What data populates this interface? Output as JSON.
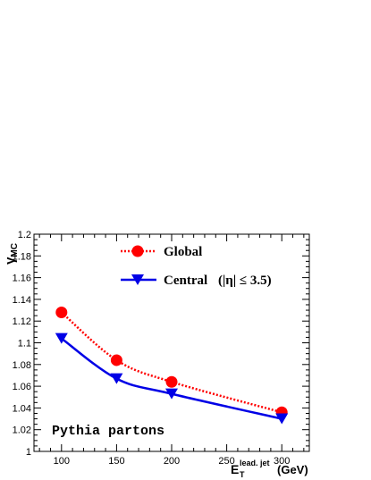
{
  "chart_data": {
    "type": "line",
    "x": [
      100,
      150,
      200,
      300
    ],
    "series": [
      {
        "name": "Global",
        "values": [
          1.128,
          1.084,
          1.064,
          1.036
        ],
        "color": "#ff0000",
        "marker": "circle",
        "line_style": "dotted"
      },
      {
        "name": "Central",
        "legend_extra": "(|η| ≤ 3.5)",
        "values": [
          1.104,
          1.067,
          1.053,
          1.03
        ],
        "color": "#0000e6",
        "marker": "triangle-down",
        "line_style": "solid"
      }
    ],
    "xlim": [
      75,
      325
    ],
    "ylim": [
      1.0,
      1.2
    ],
    "xticks": [
      100,
      150,
      200,
      250,
      300
    ],
    "yticks": [
      "1",
      "1.02",
      "1.04",
      "1.06",
      "1.08",
      "1.1",
      "1.12",
      "1.14",
      "1.16",
      "1.18",
      "1.2"
    ],
    "ylabel": {
      "main": "γ",
      "sub": "MC"
    },
    "xlabel": {
      "main": "E",
      "sub": "T",
      "sup": "lead. jet",
      "unit": "(GeV)"
    },
    "annotation": "Pythia partons",
    "legend_position": "top-center",
    "grid": false
  }
}
